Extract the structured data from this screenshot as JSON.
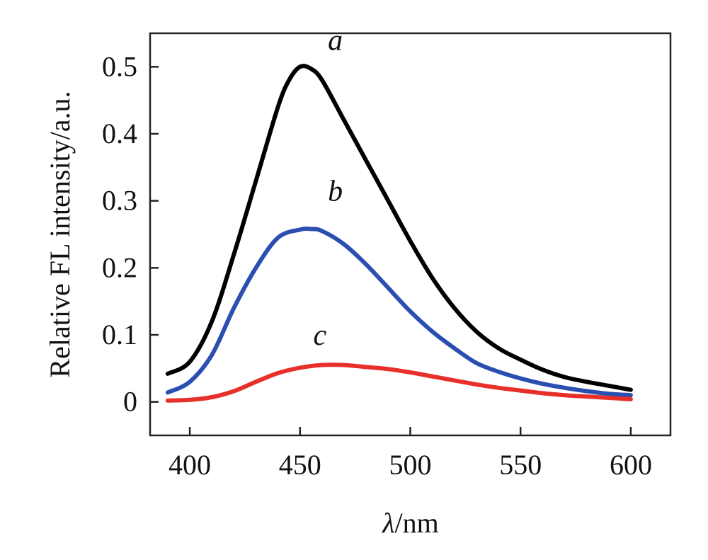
{
  "chart_data": {
    "type": "line",
    "title": "",
    "xlabel_symbol": "λ",
    "xlabel_unit": "/nm",
    "ylabel": "Relative FL intensity/a.u.",
    "xlim": [
      382,
      618
    ],
    "ylim": [
      -0.05,
      0.55
    ],
    "xticks": [
      400,
      450,
      500,
      550,
      600
    ],
    "xtick_labels": [
      "400",
      "450",
      "500",
      "550",
      "600"
    ],
    "yticks": [
      0,
      0.1,
      0.2,
      0.3,
      0.4,
      0.5
    ],
    "ytick_labels": [
      "0",
      "0.1",
      "0.2",
      "0.3",
      "0.4",
      "0.5"
    ],
    "grid": false,
    "series": [
      {
        "name": "a",
        "color": "#000000",
        "x": [
          390,
          400,
          410,
          420,
          430,
          440,
          445,
          450,
          455,
          460,
          470,
          480,
          490,
          500,
          510,
          520,
          530,
          540,
          550,
          560,
          570,
          580,
          590,
          600
        ],
        "y": [
          0.042,
          0.06,
          0.12,
          0.22,
          0.33,
          0.44,
          0.48,
          0.5,
          0.497,
          0.48,
          0.42,
          0.36,
          0.3,
          0.24,
          0.185,
          0.14,
          0.105,
          0.08,
          0.063,
          0.048,
          0.037,
          0.03,
          0.024,
          0.018
        ]
      },
      {
        "name": "b",
        "color": "#2a4fb0",
        "x": [
          390,
          400,
          410,
          420,
          430,
          440,
          450,
          455,
          460,
          470,
          480,
          490,
          500,
          510,
          520,
          530,
          540,
          550,
          560,
          570,
          580,
          590,
          600
        ],
        "y": [
          0.014,
          0.03,
          0.07,
          0.14,
          0.2,
          0.245,
          0.257,
          0.258,
          0.255,
          0.235,
          0.205,
          0.17,
          0.135,
          0.105,
          0.08,
          0.058,
          0.045,
          0.035,
          0.027,
          0.021,
          0.016,
          0.012,
          0.01
        ]
      },
      {
        "name": "c",
        "color": "#e8302a",
        "x": [
          390,
          400,
          410,
          420,
          430,
          440,
          450,
          460,
          470,
          480,
          490,
          500,
          510,
          520,
          530,
          540,
          550,
          560,
          570,
          580,
          590,
          600
        ],
        "y": [
          0.002,
          0.003,
          0.007,
          0.016,
          0.03,
          0.043,
          0.051,
          0.055,
          0.055,
          0.052,
          0.049,
          0.044,
          0.038,
          0.032,
          0.026,
          0.021,
          0.017,
          0.013,
          0.01,
          0.008,
          0.006,
          0.004
        ]
      }
    ],
    "annotations": [
      {
        "text": "a",
        "x": 466,
        "y": 0.525
      },
      {
        "text": "b",
        "x": 466,
        "y": 0.3
      },
      {
        "text": "c",
        "x": 459,
        "y": 0.085
      }
    ]
  }
}
